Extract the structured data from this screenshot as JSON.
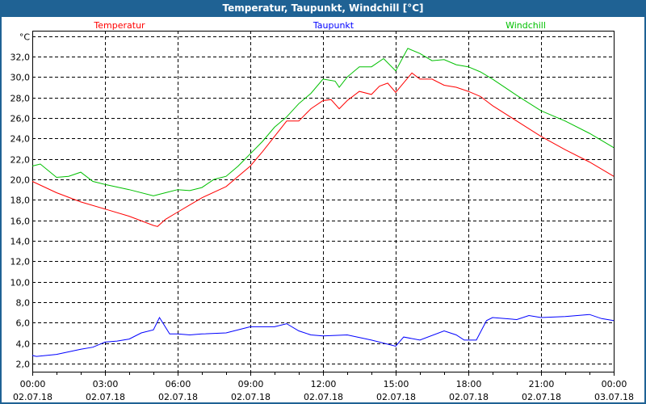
{
  "window": {
    "title": "Temperatur, Taupunkt, Windchill [°C]"
  },
  "chart_data": {
    "type": "line",
    "title": "Temperatur, Taupunkt, Windchill [°C]",
    "ylabel": "°C",
    "ylim": [
      1,
      34.5
    ],
    "yticks": [
      2,
      4,
      6,
      8,
      10,
      12,
      14,
      16,
      18,
      20,
      22,
      24,
      26,
      28,
      30,
      32
    ],
    "ytick_labels": [
      "2,0",
      "4,0",
      "6,0",
      "8,0",
      "10,0",
      "12,0",
      "14,0",
      "16,0",
      "18,0",
      "20,0",
      "22,0",
      "24,0",
      "26,0",
      "28,0",
      "30,0",
      "32,0"
    ],
    "xlim_hours": [
      0,
      24
    ],
    "xticks": [
      {
        "hour": 0,
        "time": "00:00",
        "date": "02.07.18"
      },
      {
        "hour": 3,
        "time": "03:00",
        "date": "02.07.18"
      },
      {
        "hour": 6,
        "time": "06:00",
        "date": "02.07.18"
      },
      {
        "hour": 9,
        "time": "09:00",
        "date": "02.07.18"
      },
      {
        "hour": 12,
        "time": "12:00",
        "date": "02.07.18"
      },
      {
        "hour": 15,
        "time": "15:00",
        "date": "02.07.18"
      },
      {
        "hour": 18,
        "time": "18:00",
        "date": "02.07.18"
      },
      {
        "hour": 21,
        "time": "21:00",
        "date": "02.07.18"
      },
      {
        "hour": 24,
        "time": "00:00",
        "date": "03.07.18"
      }
    ],
    "grid": true,
    "legend_placement": "top",
    "series": [
      {
        "name": "Temperatur",
        "color": "#ff0000",
        "x": [
          0,
          1,
          2,
          3,
          4,
          5,
          5.17,
          5.5,
          6,
          7,
          8,
          9,
          9.5,
          10,
          10.5,
          11,
          11.5,
          12,
          12.33,
          12.67,
          13,
          13.5,
          14,
          14.33,
          14.67,
          15,
          15.67,
          16,
          16.5,
          17,
          17.5,
          18,
          18.5,
          19,
          20,
          21,
          22,
          23,
          24
        ],
        "y": [
          19.8,
          18.7,
          17.8,
          17.1,
          16.4,
          15.5,
          15.4,
          16.1,
          16.8,
          18.2,
          19.3,
          21.3,
          22.7,
          24.2,
          25.7,
          25.7,
          26.9,
          27.7,
          27.8,
          26.9,
          27.7,
          28.6,
          28.3,
          29.1,
          29.4,
          28.5,
          30.4,
          29.8,
          29.8,
          29.2,
          29.0,
          28.6,
          28.1,
          27.2,
          25.7,
          24.2,
          22.9,
          21.7,
          20.3
        ]
      },
      {
        "name": "Taupunkt",
        "color": "#0000ff",
        "x": [
          0,
          0.17,
          1,
          2,
          2.5,
          3,
          3.5,
          4,
          4.5,
          5,
          5.25,
          5.67,
          6,
          6.5,
          7,
          8,
          9,
          10,
          10.5,
          11,
          11.5,
          12,
          13,
          14,
          15,
          15.33,
          16,
          17,
          17.5,
          17.83,
          18.33,
          18.75,
          19,
          20,
          20.5,
          21,
          22,
          23,
          23.5,
          24
        ],
        "y": [
          2.8,
          2.7,
          2.9,
          3.4,
          3.6,
          4.1,
          4.2,
          4.4,
          5.0,
          5.3,
          6.5,
          4.9,
          4.9,
          4.8,
          4.9,
          5.0,
          5.6,
          5.6,
          5.9,
          5.2,
          4.8,
          4.7,
          4.8,
          4.3,
          3.7,
          4.6,
          4.3,
          5.2,
          4.8,
          4.3,
          4.3,
          6.2,
          6.5,
          6.3,
          6.7,
          6.5,
          6.6,
          6.8,
          6.4,
          6.2
        ]
      },
      {
        "name": "Windchill",
        "color": "#00c000",
        "x": [
          0,
          0.33,
          1,
          1.5,
          2,
          2.5,
          3,
          4,
          5,
          5.5,
          6,
          6.5,
          7,
          7.5,
          8,
          8.5,
          9,
          9.5,
          10,
          10.5,
          11,
          11.5,
          12,
          12.5,
          12.67,
          13,
          13.5,
          14,
          14.5,
          15,
          15.5,
          16,
          16.5,
          17,
          17.5,
          18,
          18.5,
          19,
          20,
          21,
          22,
          23,
          24
        ],
        "y": [
          21.3,
          21.5,
          20.2,
          20.3,
          20.7,
          19.8,
          19.5,
          19.0,
          18.4,
          18.7,
          19.0,
          18.9,
          19.2,
          20.0,
          20.3,
          21.3,
          22.5,
          23.7,
          25.1,
          26.1,
          27.4,
          28.4,
          29.8,
          29.6,
          29.0,
          30.0,
          31.0,
          31.0,
          31.8,
          30.6,
          32.8,
          32.3,
          31.6,
          31.7,
          31.2,
          31.0,
          30.5,
          29.8,
          28.2,
          26.7,
          25.7,
          24.5,
          23.1
        ]
      }
    ]
  }
}
